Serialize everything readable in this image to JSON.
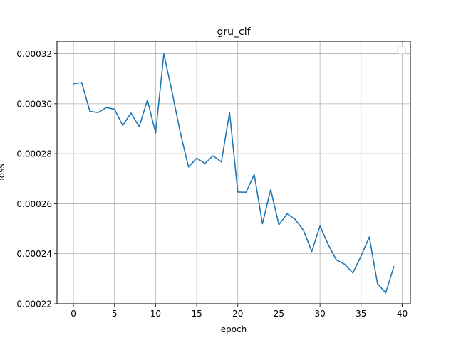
{
  "chart_data": {
    "type": "line",
    "title": "gru_clf",
    "xlabel": "epoch",
    "ylabel": "loss",
    "xlim": [
      -2,
      41
    ],
    "ylim": [
      0.00022,
      0.000325
    ],
    "xticks": [
      0,
      5,
      10,
      15,
      20,
      25,
      30,
      35,
      40
    ],
    "xtick_labels": [
      "0",
      "5",
      "10",
      "15",
      "20",
      "25",
      "30",
      "35",
      "40"
    ],
    "yticks": [
      0.00022,
      0.00024,
      0.00026,
      0.00028,
      0.0003,
      0.00032
    ],
    "ytick_labels": [
      "0.00022",
      "0.00024",
      "0.00026",
      "0.00028",
      "0.00030",
      "0.00032"
    ],
    "grid": true,
    "legend": "top-right, empty",
    "series": [
      {
        "color": "#1f77b4",
        "x": [
          0,
          1,
          2,
          3,
          4,
          5,
          6,
          7,
          8,
          9,
          10,
          11,
          12,
          13,
          14,
          15,
          16,
          17,
          18,
          19,
          20,
          21,
          22,
          23,
          24,
          25,
          26,
          27,
          28,
          29,
          30,
          31,
          32,
          33,
          34,
          35,
          36,
          37,
          38,
          39
        ],
        "y": [
          0.000308,
          0.0003085,
          0.000297,
          0.0002965,
          0.0002985,
          0.0002978,
          0.0002913,
          0.0002963,
          0.0002908,
          0.0003015,
          0.0002883,
          0.00032,
          0.0003047,
          0.0002885,
          0.0002747,
          0.0002782,
          0.0002761,
          0.0002792,
          0.0002767,
          0.0002965,
          0.0002647,
          0.0002646,
          0.0002717,
          0.000252,
          0.0002657,
          0.0002516,
          0.000256,
          0.0002537,
          0.0002493,
          0.0002409,
          0.0002511,
          0.0002437,
          0.0002375,
          0.0002358,
          0.0002323,
          0.0002391,
          0.0002467,
          0.000228,
          0.0002244,
          0.000235
        ]
      }
    ]
  }
}
